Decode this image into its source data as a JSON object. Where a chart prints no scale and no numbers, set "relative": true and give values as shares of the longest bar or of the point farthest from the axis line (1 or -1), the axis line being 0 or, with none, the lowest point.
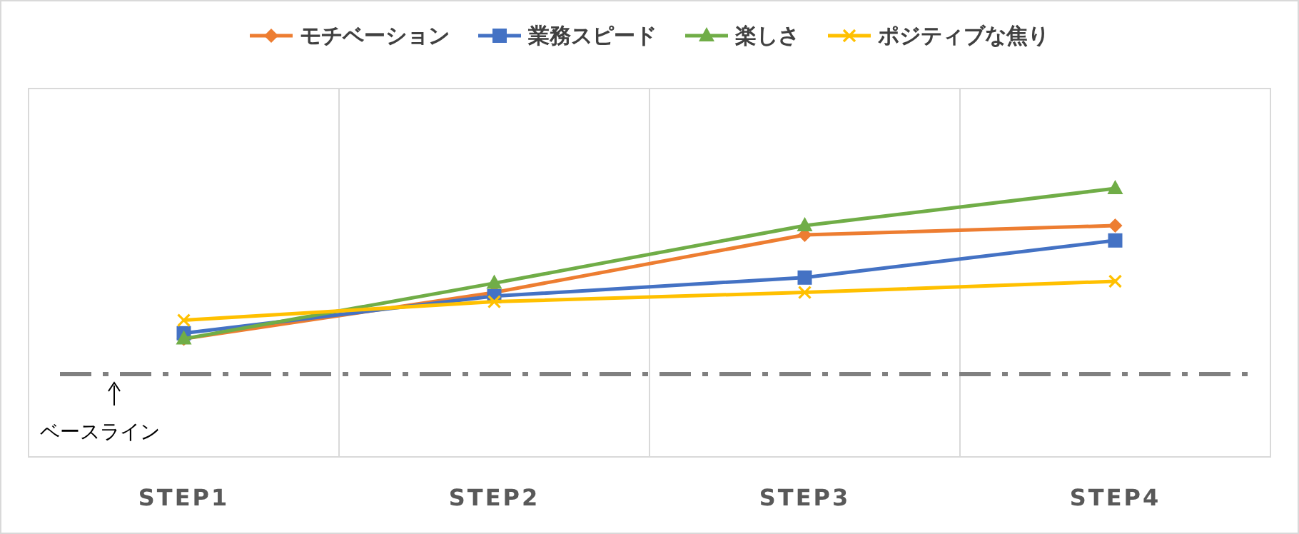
{
  "chart_data": {
    "type": "line",
    "relative": true,
    "categories": [
      "STEP1",
      "STEP2",
      "STEP3",
      "STEP4"
    ],
    "series": [
      {
        "name": "モチベーション",
        "color": "#ed7d31",
        "marker": "diamond",
        "values": [
          0.19,
          0.44,
          0.75,
          0.8
        ]
      },
      {
        "name": "業務スピード",
        "color": "#4472c4",
        "marker": "square",
        "values": [
          0.22,
          0.42,
          0.52,
          0.72
        ]
      },
      {
        "name": "楽しさ",
        "color": "#70ad47",
        "marker": "triangle",
        "values": [
          0.19,
          0.49,
          0.8,
          1
        ]
      },
      {
        "name": "ポジティブな焦り",
        "color": "#ffc000",
        "marker": "cross",
        "values": [
          0.29,
          0.39,
          0.44,
          0.5
        ]
      }
    ],
    "ref_lines": [
      {
        "axis": "y",
        "value": 0,
        "label": "ベースライン",
        "color": "#808080",
        "line_style": "dashdot"
      }
    ],
    "grid": "x",
    "legend": "top"
  }
}
